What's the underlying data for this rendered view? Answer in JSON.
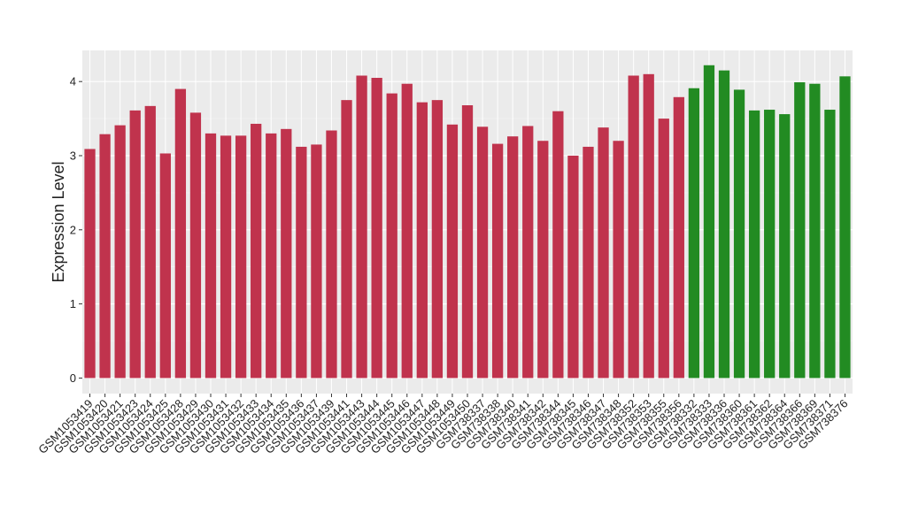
{
  "chart_data": {
    "type": "bar",
    "y_label": "Expression Level",
    "categories": [
      "GSM1053419",
      "GSM1053420",
      "GSM1053421",
      "GSM1053423",
      "GSM1053424",
      "GSM1053425",
      "GSM1053428",
      "GSM1053429",
      "GSM1053430",
      "GSM1053431",
      "GSM1053432",
      "GSM1053433",
      "GSM1053434",
      "GSM1053435",
      "GSM1053436",
      "GSM1053437",
      "GSM1053439",
      "GSM1053441",
      "GSM1053443",
      "GSM1053444",
      "GSM1053445",
      "GSM1053446",
      "GSM1053447",
      "GSM1053448",
      "GSM1053449",
      "GSM1053450",
      "GSM738337",
      "GSM738338",
      "GSM738340",
      "GSM738341",
      "GSM738342",
      "GSM738344",
      "GSM738345",
      "GSM738346",
      "GSM738347",
      "GSM738348",
      "GSM738352",
      "GSM738353",
      "GSM738355",
      "GSM738356",
      "GSM738332",
      "GSM738333",
      "GSM738336",
      "GSM738360",
      "GSM738361",
      "GSM738362",
      "GSM738364",
      "GSM738366",
      "GSM738369",
      "GSM738371",
      "GSM738376"
    ],
    "values": [
      3.09,
      3.29,
      3.41,
      3.61,
      3.67,
      3.03,
      3.9,
      3.58,
      3.3,
      3.27,
      3.27,
      3.43,
      3.3,
      3.36,
      3.12,
      3.15,
      3.34,
      3.75,
      4.08,
      4.05,
      3.84,
      3.97,
      3.72,
      3.75,
      3.42,
      3.68,
      3.39,
      3.16,
      3.26,
      3.4,
      3.2,
      3.6,
      3.0,
      3.12,
      3.38,
      3.2,
      4.08,
      4.1,
      3.5,
      3.79,
      3.91,
      4.22,
      4.15,
      3.89,
      3.61,
      3.62,
      3.56,
      3.99,
      3.97,
      3.62,
      4.07
    ],
    "colors": [
      "#c0334d",
      "#c0334d",
      "#c0334d",
      "#c0334d",
      "#c0334d",
      "#c0334d",
      "#c0334d",
      "#c0334d",
      "#c0334d",
      "#c0334d",
      "#c0334d",
      "#c0334d",
      "#c0334d",
      "#c0334d",
      "#c0334d",
      "#c0334d",
      "#c0334d",
      "#c0334d",
      "#c0334d",
      "#c0334d",
      "#c0334d",
      "#c0334d",
      "#c0334d",
      "#c0334d",
      "#c0334d",
      "#c0334d",
      "#c0334d",
      "#c0334d",
      "#c0334d",
      "#c0334d",
      "#c0334d",
      "#c0334d",
      "#c0334d",
      "#c0334d",
      "#c0334d",
      "#c0334d",
      "#c0334d",
      "#c0334d",
      "#c0334d",
      "#c0334d",
      "#228b22",
      "#228b22",
      "#228b22",
      "#228b22",
      "#228b22",
      "#228b22",
      "#228b22",
      "#228b22",
      "#228b22",
      "#228b22",
      "#228b22"
    ],
    "ylim": [
      -0.21,
      4.42
    ],
    "yticks": [
      0,
      1,
      2,
      3,
      4
    ],
    "grid": true
  }
}
